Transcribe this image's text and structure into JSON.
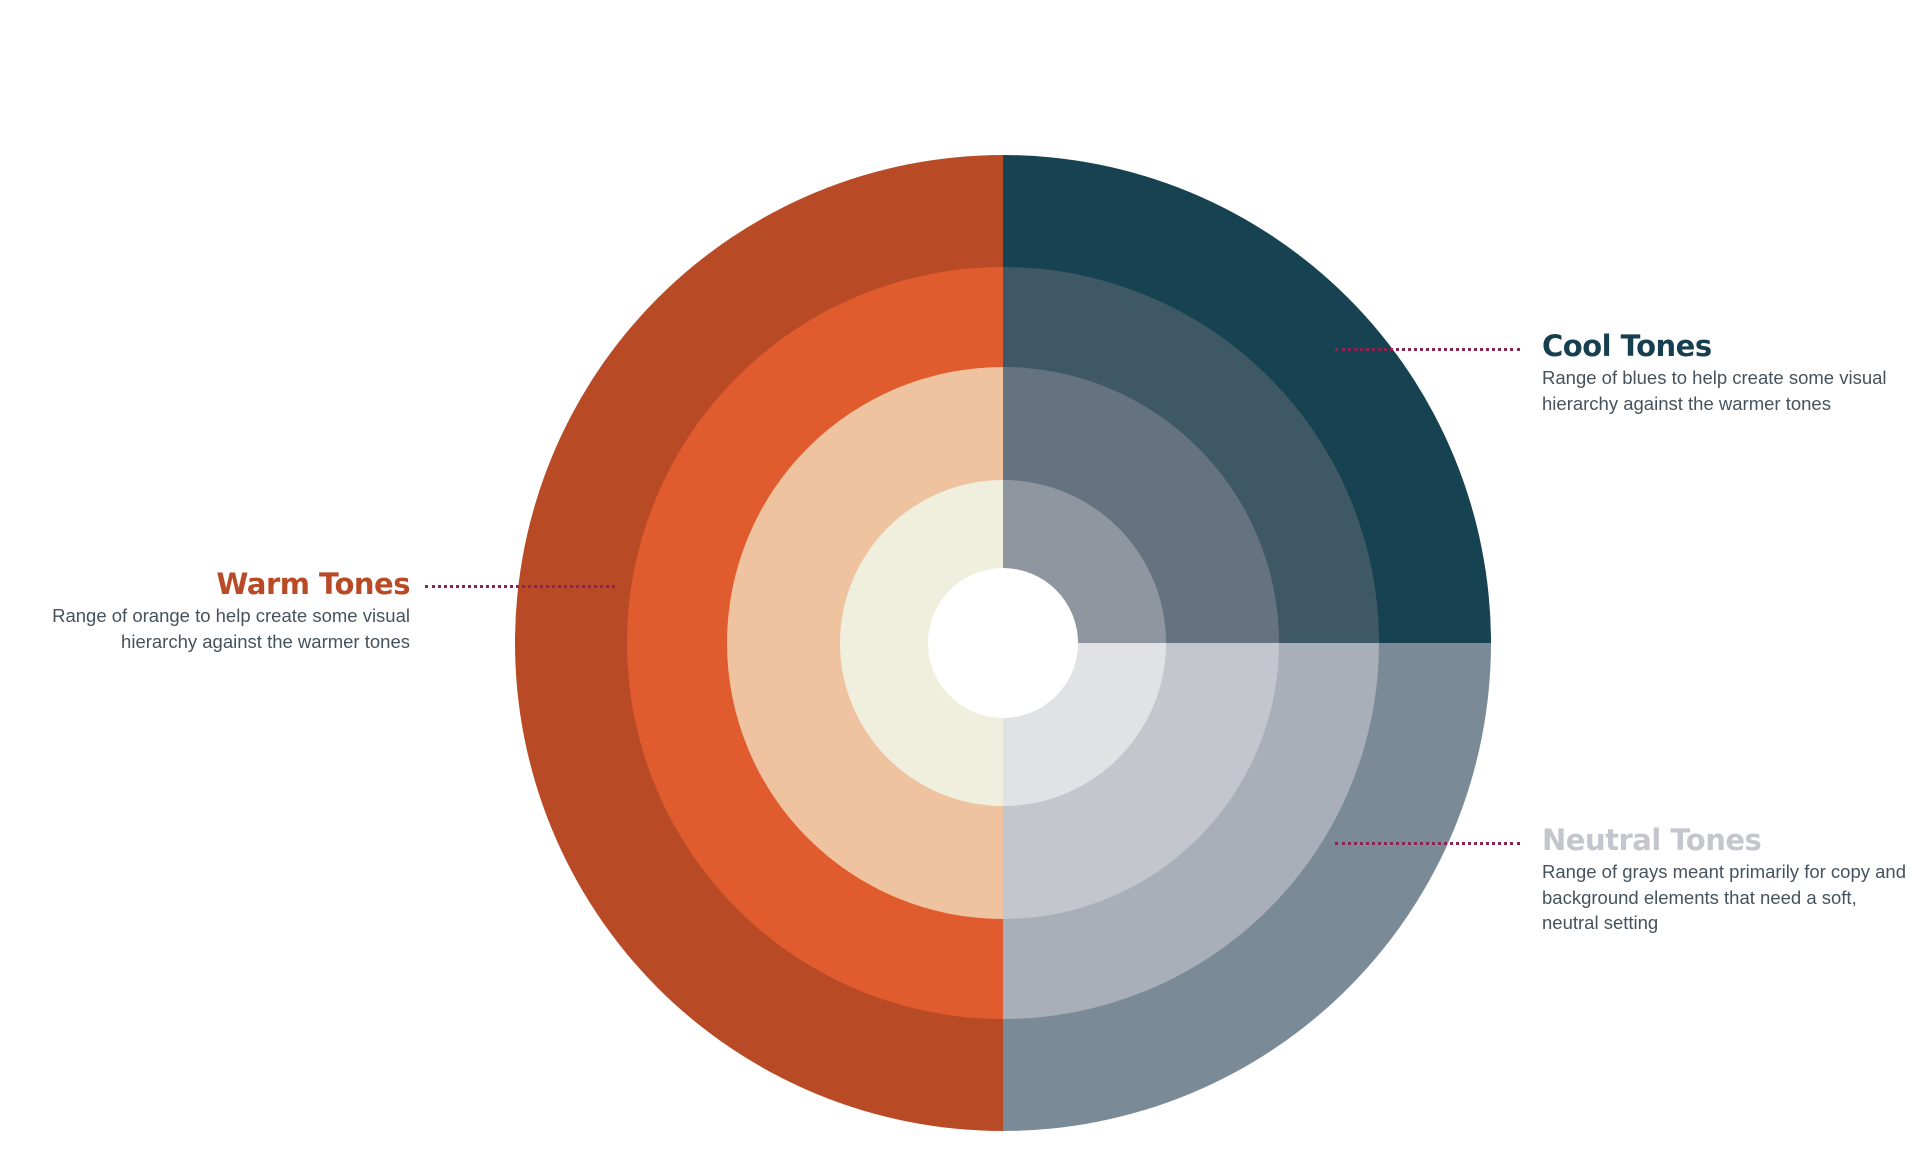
{
  "callouts": {
    "cool": {
      "title": "Cool Tones",
      "description": "Range of blues to help create some visual hierarchy against the warmer tones",
      "title_color": "#173f4f",
      "leader_color": "#8a2450"
    },
    "warm": {
      "title": "Warm Tones",
      "description": "Range of orange to help create some visual hierarchy against the warmer tones",
      "title_color": "#b94a26",
      "leader_color": "#8a2450"
    },
    "neutral": {
      "title": "Neutral Tones",
      "description": "Range of grays meant primarily for copy and background elements that need a soft, neutral setting",
      "title_color": "#c3c6cd",
      "leader_color": "#8a2450"
    }
  },
  "wheel": {
    "center_color": "#ffffff",
    "rings": [
      {
        "level": 1,
        "warm": "#b94a26",
        "cool": "#174252",
        "neutral": "#7a8a96"
      },
      {
        "level": 2,
        "warm": "#e05c2e",
        "cool": "#3f5866",
        "neutral": "#a9afb8"
      },
      {
        "level": 3,
        "warm": "#efc2a0",
        "cool": "#64737f",
        "neutral": "#c3c6cd"
      },
      {
        "level": 4,
        "warm": "#f0eedc",
        "cool": "#9096a0",
        "neutral": "#e0e2e6"
      }
    ]
  }
}
